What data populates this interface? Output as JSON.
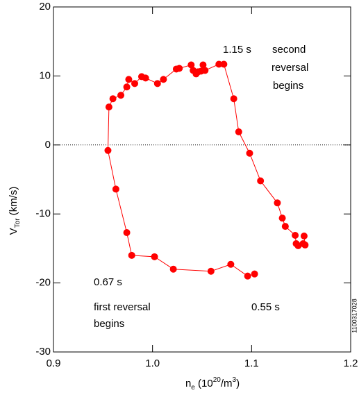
{
  "chart_data": {
    "type": "line",
    "xlabel": [
      {
        "text": "n"
      },
      {
        "text": "e",
        "style": "sub"
      },
      {
        "text": " (10"
      },
      {
        "text": "20",
        "style": "sup"
      },
      {
        "text": "/m"
      },
      {
        "text": "3",
        "style": "sup"
      },
      {
        "text": ")"
      }
    ],
    "ylabel": [
      {
        "text": "V"
      },
      {
        "text": "Tor",
        "style": "sub"
      },
      {
        "text": " (km/s)"
      }
    ],
    "xlim": [
      0.9,
      1.2
    ],
    "xticks": [
      0.9,
      {
        "value": 1.0,
        "label": "1.0"
      },
      1.1,
      1.2
    ],
    "ylim": [
      -30,
      20
    ],
    "yticks": [
      20,
      10,
      0,
      -10,
      -20,
      -30
    ],
    "reference_line": 0,
    "color": "#ff0000",
    "x": [
      1.103,
      1.096,
      1.079,
      1.059,
      1.021,
      1.002,
      0.979,
      0.974,
      0.963,
      0.955,
      0.956,
      0.96,
      0.968,
      0.974,
      0.976,
      0.982,
      0.989,
      0.993,
      1.005,
      1.011,
      1.024,
      1.027,
      1.039,
      1.041,
      1.044,
      1.046,
      1.049,
      1.051,
      1.053,
      1.067,
      1.072,
      1.082,
      1.087,
      1.098,
      1.109,
      1.126,
      1.131,
      1.134,
      1.144,
      1.145,
      1.147,
      1.152,
      1.154,
      1.153
    ],
    "values": [
      -18.7,
      -19.0,
      -17.3,
      -18.3,
      -18.0,
      -16.2,
      -16.0,
      -12.7,
      -6.4,
      -0.8,
      5.5,
      6.7,
      7.2,
      8.4,
      9.5,
      8.9,
      9.9,
      9.7,
      8.9,
      9.5,
      11.0,
      11.1,
      11.6,
      10.8,
      10.3,
      10.6,
      10.7,
      11.6,
      10.8,
      11.7,
      11.7,
      6.7,
      1.9,
      -1.2,
      -5.2,
      -8.4,
      -10.6,
      -11.8,
      -13.1,
      -14.3,
      -14.6,
      -14.3,
      -14.5,
      -13.2
    ],
    "annotations": [
      "1.15 s",
      "second",
      "reversal",
      "begins",
      "0.67 s",
      "first reversal",
      "begins",
      "0.55 s"
    ],
    "figure_id": "1100317028"
  }
}
